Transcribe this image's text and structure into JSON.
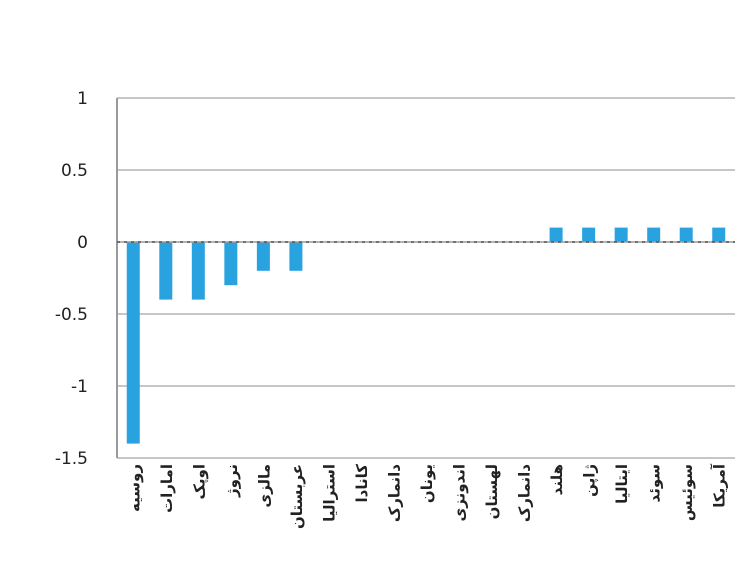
{
  "chart_data": {
    "type": "bar",
    "title": "",
    "xlabel": "",
    "ylabel": "",
    "ylim": [
      -1.5,
      1
    ],
    "yticks": [
      1,
      0.5,
      0,
      -0.5,
      -1,
      -1.5
    ],
    "ytick_labels": [
      "1",
      "0.5",
      "0",
      "-0.5",
      "-1",
      "-1.5"
    ],
    "grid": true,
    "bar_color": "#29a3e0",
    "categories": [
      "روسیه",
      "امارات",
      "اوپک",
      "نروژ",
      "مالزی",
      "عربستان",
      "استرالیا",
      "کانادا",
      "دانمارک",
      "یونان",
      "اندونزی",
      "لهستان",
      "دانمارک",
      "هلند",
      "ژاپن",
      "ایتالیا",
      "سوئد",
      "سوئیس",
      "آمریکا"
    ],
    "values": [
      -1.4,
      -0.4,
      -0.4,
      -0.3,
      -0.2,
      -0.2,
      0,
      0,
      0,
      0,
      0,
      0,
      0,
      0.1,
      0.1,
      0.1,
      0.1,
      0.1,
      0.1
    ]
  }
}
